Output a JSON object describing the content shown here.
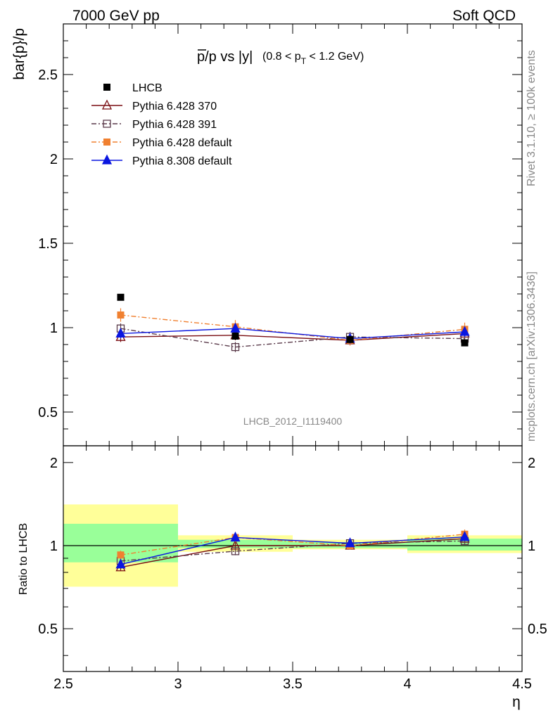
{
  "header": {
    "left": "7000 GeV pp",
    "right": "Soft QCD"
  },
  "side": {
    "rivet": "Rivet 3.1.10, ≥ 100k events",
    "mcplots": "mcplots.cern.ch [arXiv:1306.3436]"
  },
  "watermark": "LHCB_2012_I1119400",
  "chart_data": {
    "type": "line",
    "title": "p̅/p vs |y|",
    "title_main": "p/p vs |y|",
    "title_sub": "(0.8 < p",
    "title_sub_T": "T",
    "title_sub_end": " < 1.2 GeV)",
    "xlabel": "η",
    "ylabel": "bar{p}/p",
    "ratio_ylabel": "Ratio to LHCB",
    "xlim": [
      2.5,
      4.5
    ],
    "ylim": [
      0.3,
      2.8
    ],
    "ratio_ylim": [
      0.35,
      2.3
    ],
    "x": [
      2.75,
      3.25,
      3.75,
      4.25
    ],
    "xticks": [
      2.5,
      3,
      3.5,
      4,
      4.5
    ],
    "xtick_labels": [
      "2.5",
      "3",
      "3.5",
      "4",
      "4.5"
    ],
    "yticks": [
      0.5,
      1,
      1.5,
      2,
      2.5
    ],
    "ytick_labels": [
      "0.5",
      "1",
      "1.5",
      "2",
      "2.5"
    ],
    "ratio_yticks": [
      0.5,
      1,
      2
    ],
    "ratio_ytick_labels": [
      "0.5",
      "1",
      "2"
    ],
    "data": {
      "name": "LHCB",
      "values": [
        1.18,
        0.95,
        0.93,
        0.91
      ],
      "bins": [
        [
          2.5,
          3.0
        ],
        [
          3.0,
          3.5
        ],
        [
          3.5,
          4.0
        ],
        [
          4.0,
          4.5
        ]
      ],
      "band_inner": [
        [
          0.87,
          1.2
        ],
        [
          0.98,
          1.05
        ],
        [
          0.98,
          1.03
        ],
        [
          0.96,
          1.06
        ]
      ],
      "band_outer": [
        [
          0.71,
          1.41
        ],
        [
          0.95,
          1.09
        ],
        [
          0.97,
          1.05
        ],
        [
          0.94,
          1.09
        ]
      ]
    },
    "series": [
      {
        "name": "Pythia 6.428 370",
        "color": "#7a0d12",
        "dash": "",
        "marker": "triangle-open",
        "values": [
          0.945,
          0.955,
          0.925,
          0.965
        ],
        "errors": [
          0.03,
          0.03,
          0.03,
          0.03
        ],
        "ratio": [
          0.835,
          1.0,
          1.0,
          1.06
        ]
      },
      {
        "name": "Pythia 6.428 391",
        "color": "#5a3a4a",
        "dash": "7,3,2,3",
        "marker": "square-open",
        "values": [
          0.995,
          0.885,
          0.945,
          0.935
        ],
        "errors": [
          0.03,
          0.03,
          0.03,
          0.03
        ],
        "ratio": [
          0.88,
          0.955,
          1.02,
          1.04
        ]
      },
      {
        "name": "Pythia 6.428 default",
        "color": "#f08030",
        "dash": "7,3,2,3",
        "marker": "square-filled",
        "values": [
          1.075,
          1.005,
          0.925,
          0.99
        ],
        "errors": [
          0.04,
          0.04,
          0.03,
          0.04
        ],
        "ratio": [
          0.925,
          1.07,
          1.0,
          1.1
        ]
      },
      {
        "name": "Pythia 8.308 default",
        "color": "#0a16e0",
        "dash": "",
        "marker": "triangle-filled",
        "values": [
          0.965,
          0.995,
          0.935,
          0.975
        ],
        "errors": [
          0.03,
          0.03,
          0.03,
          0.03
        ],
        "ratio": [
          0.855,
          1.07,
          1.02,
          1.075
        ]
      }
    ],
    "legend_placement": "top-left",
    "grid": false
  }
}
